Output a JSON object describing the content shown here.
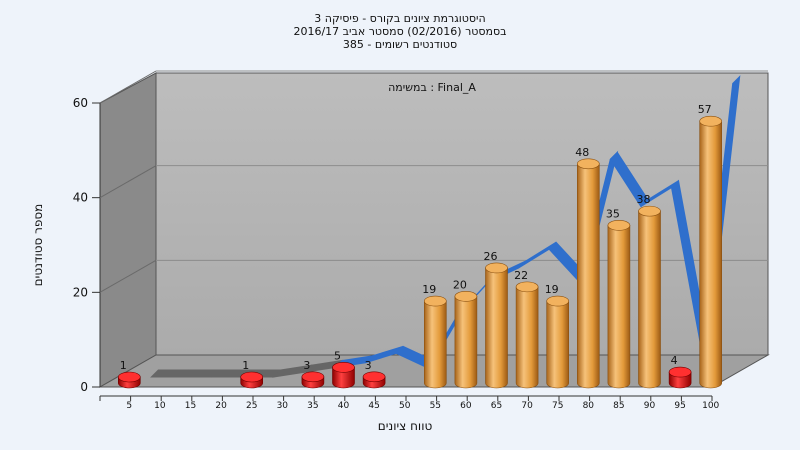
{
  "chart_data": {
    "type": "bar",
    "title_lines": [
      "היסטוגרמת ציונים בקורס - פיסיקה 3",
      "בסמסטר  (02/2016)  סמסטר אביב 2016/17",
      "סטודנטים רשומים - 385"
    ],
    "annotation": "במשימה : Final_A",
    "xlabel": "טווח ציונים",
    "ylabel": "מספר סטודנטים",
    "categories": [
      "5",
      "10",
      "15",
      "20",
      "25",
      "30",
      "35",
      "40",
      "45",
      "50",
      "55",
      "60",
      "65",
      "70",
      "75",
      "80",
      "85",
      "90",
      "95",
      "100"
    ],
    "values": [
      1,
      0,
      0,
      0,
      1,
      0,
      3,
      5,
      3,
      0,
      19,
      20,
      26,
      22,
      19,
      48,
      35,
      38,
      4,
      57
    ],
    "bar_labels": [
      "1",
      "",
      "",
      "",
      "1",
      "",
      "3",
      "5",
      "3",
      "",
      "19",
      "20",
      "26",
      "22",
      "19",
      "48",
      "35",
      "38",
      "4",
      "57"
    ],
    "ylim": [
      0,
      60
    ],
    "yticks": [
      "0",
      "20",
      "40",
      "60"
    ],
    "series": [
      {
        "name": "bars",
        "values": [
          1,
          0,
          0,
          0,
          1,
          0,
          3,
          5,
          3,
          0,
          19,
          20,
          26,
          22,
          19,
          48,
          35,
          38,
          4,
          57
        ]
      },
      {
        "name": "trend",
        "values": [
          0,
          0,
          0,
          0,
          0,
          1,
          2,
          3,
          5,
          2,
          13,
          20,
          23,
          27,
          20,
          46,
          36,
          40,
          5,
          62
        ]
      }
    ],
    "colors": {
      "low_bar": "#d41414",
      "high_bar": "#e8a03c",
      "ribbon": "#2f6fcc",
      "ribbon_dim": "#666666",
      "wall": "#b4b4b4",
      "side_wall": "#8a8a8a",
      "floor": "#9a9a9a"
    },
    "grid": true,
    "view": "3d"
  }
}
